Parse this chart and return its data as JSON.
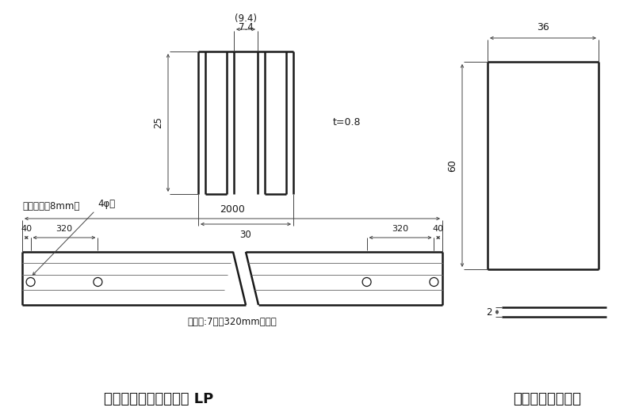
{
  "bg_color": "#ffffff",
  "line_color": "#1a1a1a",
  "dim_color": "#444444",
  "thin_color": "#777777",
  "title_left": "キッチンディバイダー LP",
  "title_right": "ジョイントシート",
  "label_94": "(9.4)",
  "label_74": "7.4",
  "label_25": "25",
  "label_30": "30",
  "label_t": "t=0.8",
  "label_note": "（　）内は8mm用",
  "label_2000": "2000",
  "label_40a": "40",
  "label_320a": "320",
  "label_320b": "320",
  "label_40b": "40",
  "label_holes": "取付穴:7個　320mmピッチ",
  "label_hole_arrow": "4φ穴",
  "label_36": "36",
  "label_60": "60",
  "label_2": "2"
}
